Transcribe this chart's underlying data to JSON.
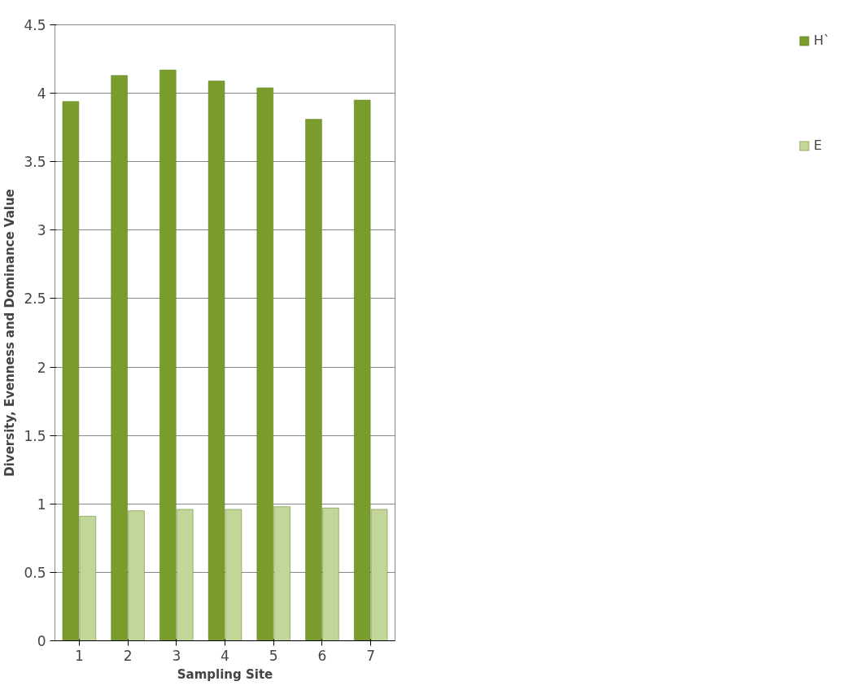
{
  "chart_data": {
    "type": "bar",
    "xlabel": "Sampling Site",
    "ylabel": "Diversity, Evenness and Dominance Value",
    "categories": [
      "1",
      "2",
      "3",
      "4",
      "5",
      "6",
      "7"
    ],
    "series": [
      {
        "name": "H`",
        "color": "#7a9c2c",
        "values": [
          3.94,
          4.13,
          4.17,
          4.09,
          4.04,
          3.81,
          3.95
        ]
      },
      {
        "name": "E",
        "color": "#c2d69a",
        "values": [
          0.91,
          0.95,
          0.96,
          0.96,
          0.98,
          0.97,
          0.96
        ]
      }
    ],
    "ylim": [
      0,
      4.5
    ],
    "yticks": [
      0,
      0.5,
      1,
      1.5,
      2,
      2.5,
      3,
      3.5,
      4,
      4.5
    ],
    "grid": "y",
    "legend": "right"
  }
}
